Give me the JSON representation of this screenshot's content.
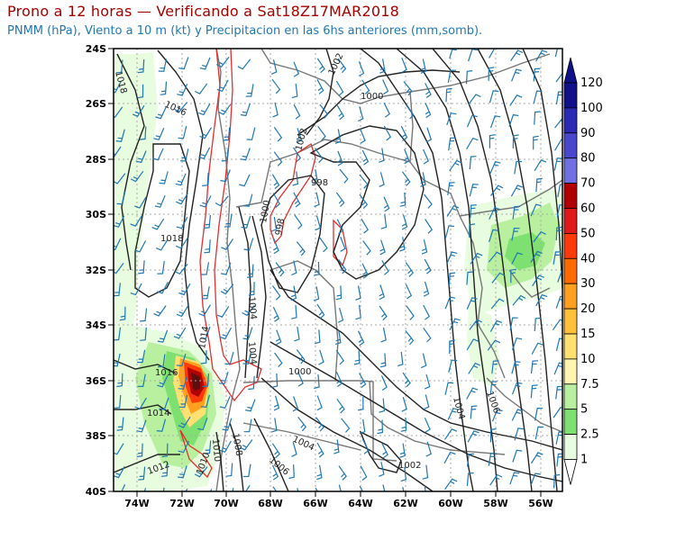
{
  "title": "Prono a 12 horas — Verificando a Sat18Z17MAR2018",
  "subtitle": "PNMM (hPa), Viento a 10 m (kt) y Precipitacion en las 6hs anteriores (mm,somb).",
  "latitude_labels": [
    "24S",
    "26S",
    "28S",
    "30S",
    "32S",
    "34S",
    "36S",
    "38S",
    "40S"
  ],
  "longitude_labels": [
    "74W",
    "72W",
    "70W",
    "68W",
    "66W",
    "64W",
    "62W",
    "60W",
    "58W",
    "56W"
  ],
  "colorbar": {
    "labels": [
      "120",
      "100",
      "90",
      "80",
      "70",
      "60",
      "50",
      "40",
      "30",
      "20",
      "15",
      "10",
      "7.5",
      "5",
      "2.5",
      "1"
    ],
    "colors": [
      "#10108a",
      "#2a2ab4",
      "#4848cf",
      "#7070e2",
      "#b00000",
      "#e01818",
      "#ff3a0a",
      "#ff6a00",
      "#ffa020",
      "#ffc03c",
      "#ffe070",
      "#fff4b0",
      "#b8f0a0",
      "#7ee070",
      "#e8fce0"
    ]
  },
  "isobar_labels": [
    "1018",
    "1016",
    "1018",
    "1016",
    "1014",
    "1014",
    "1012",
    "1010",
    "1010",
    "1008",
    "1006",
    "1004",
    "1002",
    "1000",
    "998",
    "998",
    "1000",
    "1004",
    "1004",
    "1000",
    "1002",
    "1004",
    "1006",
    "1002"
  ],
  "colors": {
    "title": "#a50000",
    "subtitle": "#1f78b4",
    "wind_barb": "#1f78b4",
    "isobar": "#222222",
    "precip_contour": "#e03030",
    "border": "#777777",
    "grid": "#aaaaaa"
  }
}
